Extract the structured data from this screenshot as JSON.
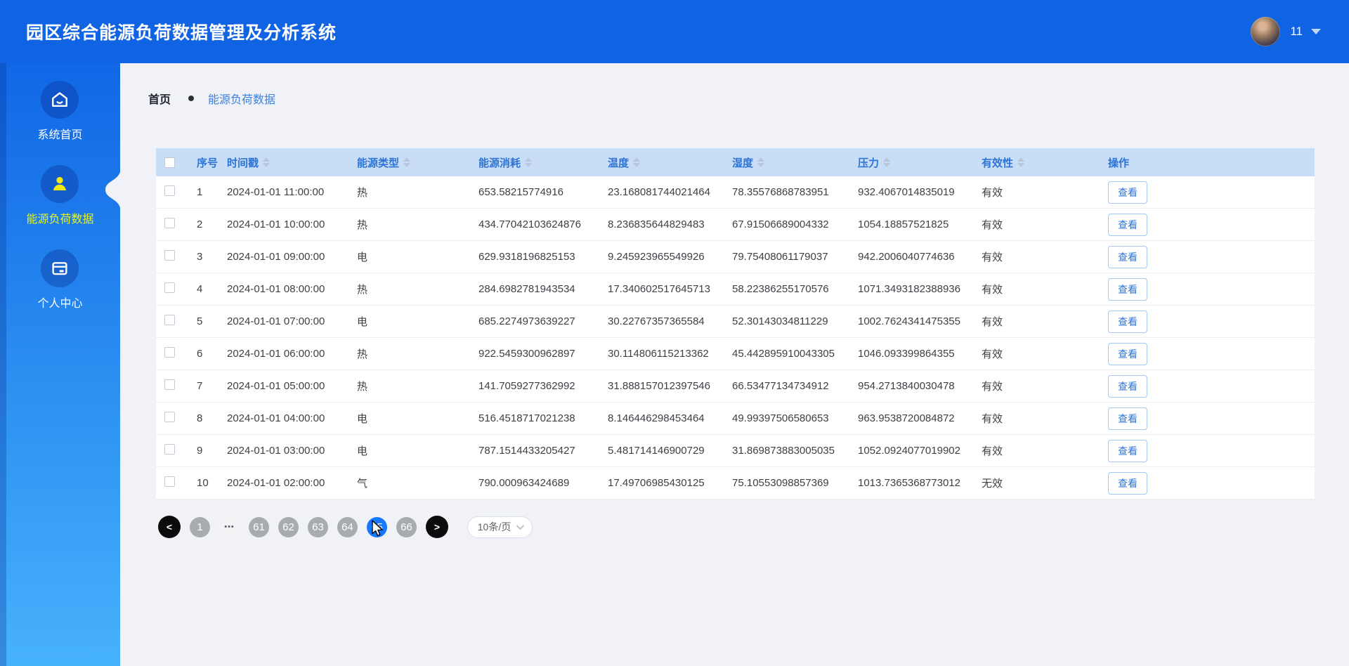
{
  "header": {
    "title": "园区综合能源负荷数据管理及分析系统",
    "user_label": "11"
  },
  "sidebar": {
    "items": [
      {
        "id": "home",
        "label": "系统首页",
        "icon": "home-icon",
        "active": false
      },
      {
        "id": "energy",
        "label": "能源负荷数据",
        "icon": "person-icon",
        "active": true
      },
      {
        "id": "profile",
        "label": "个人中心",
        "icon": "card-icon",
        "active": false
      }
    ]
  },
  "breadcrumb": {
    "root": "首页",
    "current": "能源负荷数据"
  },
  "table": {
    "columns": [
      {
        "key": "checkbox",
        "label": "",
        "sortable": false
      },
      {
        "key": "seq",
        "label": "序号",
        "sortable": false
      },
      {
        "key": "timestamp",
        "label": "时间戳",
        "sortable": true
      },
      {
        "key": "type",
        "label": "能源类型",
        "sortable": true
      },
      {
        "key": "consumption",
        "label": "能源消耗",
        "sortable": true
      },
      {
        "key": "temperature",
        "label": "温度",
        "sortable": true
      },
      {
        "key": "humidity",
        "label": "湿度",
        "sortable": true
      },
      {
        "key": "pressure",
        "label": "压力",
        "sortable": true
      },
      {
        "key": "validity",
        "label": "有效性",
        "sortable": true
      },
      {
        "key": "action",
        "label": "操作",
        "sortable": false
      }
    ],
    "action_label": "查看",
    "rows": [
      {
        "seq": "1",
        "timestamp": "2024-01-01 11:00:00",
        "type": "热",
        "consumption": "653.58215774916",
        "temperature": "23.168081744021464",
        "humidity": "78.35576868783951",
        "pressure": "932.4067014835019",
        "validity": "有效"
      },
      {
        "seq": "2",
        "timestamp": "2024-01-01 10:00:00",
        "type": "热",
        "consumption": "434.77042103624876",
        "temperature": "8.236835644829483",
        "humidity": "67.91506689004332",
        "pressure": "1054.18857521825",
        "validity": "有效"
      },
      {
        "seq": "3",
        "timestamp": "2024-01-01 09:00:00",
        "type": "电",
        "consumption": "629.9318196825153",
        "temperature": "9.245923965549926",
        "humidity": "79.75408061179037",
        "pressure": "942.2006040774636",
        "validity": "有效"
      },
      {
        "seq": "4",
        "timestamp": "2024-01-01 08:00:00",
        "type": "热",
        "consumption": "284.6982781943534",
        "temperature": "17.340602517645713",
        "humidity": "58.22386255170576",
        "pressure": "1071.3493182388936",
        "validity": "有效"
      },
      {
        "seq": "5",
        "timestamp": "2024-01-01 07:00:00",
        "type": "电",
        "consumption": "685.2274973639227",
        "temperature": "30.22767357365584",
        "humidity": "52.30143034811229",
        "pressure": "1002.7624341475355",
        "validity": "有效"
      },
      {
        "seq": "6",
        "timestamp": "2024-01-01 06:00:00",
        "type": "热",
        "consumption": "922.5459300962897",
        "temperature": "30.114806115213362",
        "humidity": "45.442895910043305",
        "pressure": "1046.093399864355",
        "validity": "有效"
      },
      {
        "seq": "7",
        "timestamp": "2024-01-01 05:00:00",
        "type": "热",
        "consumption": "141.7059277362992",
        "temperature": "31.888157012397546",
        "humidity": "66.53477134734912",
        "pressure": "954.2713840030478",
        "validity": "有效"
      },
      {
        "seq": "8",
        "timestamp": "2024-01-01 04:00:00",
        "type": "电",
        "consumption": "516.4518717021238",
        "temperature": "8.146446298453464",
        "humidity": "49.99397506580653",
        "pressure": "963.9538720084872",
        "validity": "有效"
      },
      {
        "seq": "9",
        "timestamp": "2024-01-01 03:00:00",
        "type": "电",
        "consumption": "787.1514433205427",
        "temperature": "5.481714146900729",
        "humidity": "31.869873883005035",
        "pressure": "1052.0924077019902",
        "validity": "有效"
      },
      {
        "seq": "10",
        "timestamp": "2024-01-01 02:00:00",
        "type": "气",
        "consumption": "790.000963424689",
        "temperature": "17.49706985430125",
        "humidity": "75.10553098857369",
        "pressure": "1013.7365368773012",
        "validity": "无效"
      }
    ]
  },
  "pagination": {
    "prev_label": "<",
    "next_label": ">",
    "items": [
      {
        "label": "1",
        "kind": "page",
        "active": false
      },
      {
        "label": "•••",
        "kind": "ellipsis",
        "active": false
      },
      {
        "label": "61",
        "kind": "page",
        "active": false
      },
      {
        "label": "62",
        "kind": "page",
        "active": false
      },
      {
        "label": "63",
        "kind": "page",
        "active": false
      },
      {
        "label": "64",
        "kind": "page",
        "active": false
      },
      {
        "label": "65",
        "kind": "page",
        "active": true
      },
      {
        "label": "66",
        "kind": "page",
        "active": false
      }
    ],
    "page_size": "10条/页"
  },
  "colors": {
    "header_bg": "#1063e2",
    "sidebar_top": "#1167e6",
    "sidebar_bottom": "#47b2fc",
    "active_icon": "#f2e912",
    "active_label": "#e3f32a",
    "table_header_bg": "#c8ddf6",
    "table_header_text": "#2e74d6",
    "active_page": "#1677ff",
    "content_bg": "#f0f2f7"
  }
}
